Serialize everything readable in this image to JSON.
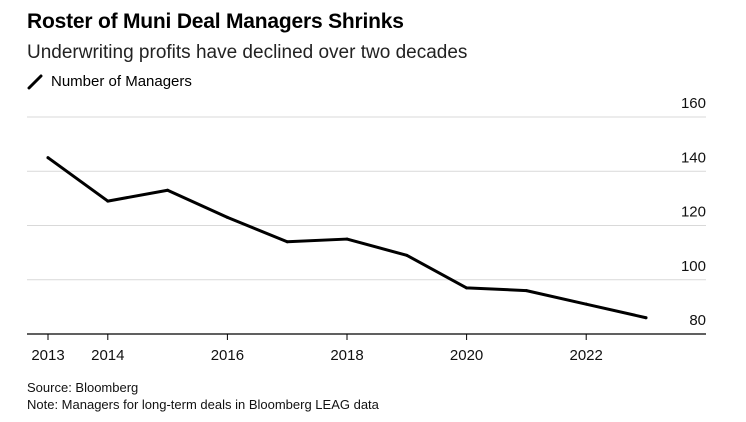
{
  "title": "Roster of Muni Deal Managers Shrinks",
  "subtitle": "Underwriting profits have declined over two decades",
  "legend": {
    "label": "Number of Managers"
  },
  "footer": {
    "source": "Source: Bloomberg",
    "note": "Note: Managers for long-term deals in Bloomberg LEAG data"
  },
  "colors": {
    "line": "#000000",
    "grid": "#d9d9d9",
    "axis": "#000000"
  },
  "chart_data": {
    "type": "line",
    "title": "Roster of Muni Deal Managers Shrinks",
    "subtitle": "Underwriting profits have declined over two decades",
    "x": [
      2013,
      2014,
      2015,
      2016,
      2017,
      2018,
      2019,
      2020,
      2021,
      2022,
      2023
    ],
    "series": [
      {
        "name": "Number of Managers",
        "values": [
          145,
          129,
          133,
          123,
          114,
          115,
          109,
          97,
          96,
          91,
          86
        ]
      }
    ],
    "x_ticks": [
      "2013",
      "2014",
      "2016",
      "2018",
      "2020",
      "2022"
    ],
    "y_ticks": [
      "80",
      "100",
      "120",
      "140",
      "160"
    ],
    "xlim": [
      2013,
      2023
    ],
    "ylim": [
      80,
      160
    ],
    "grid": true,
    "y_axis_side": "right",
    "legend_position": "top-left"
  }
}
